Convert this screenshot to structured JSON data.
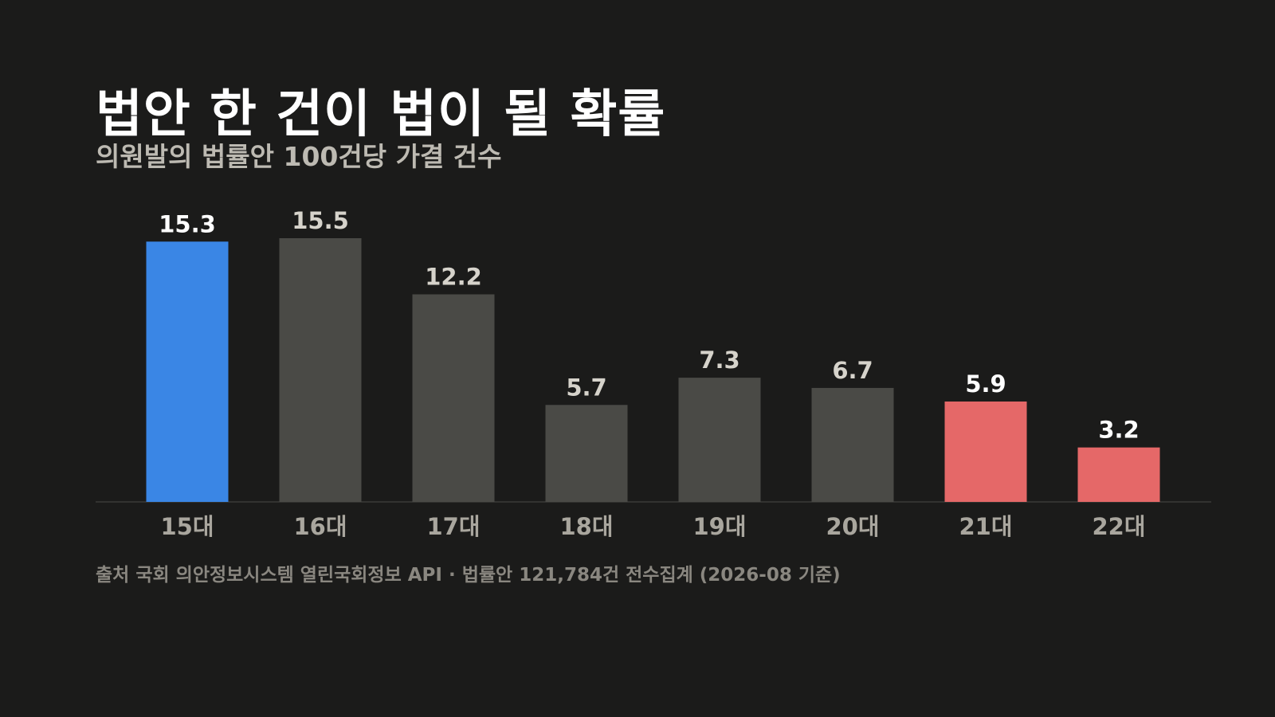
{
  "title": "법안 한 건이 법이 될 확률",
  "subtitle": "의원발의 법률안 100건당 가결 건수",
  "source": "출처 국회 의안정보시스템 열린국회정보 API · 법률안 121,784건 전수집계 (2026-08 기준)",
  "colors": {
    "background": "#1b1b1a",
    "highlight_blue": "#3a86e5",
    "neutral_gray": "#4a4a46",
    "highlight_red": "#e56868",
    "label_light": "#ffffff",
    "label_muted": "#d6d3cb",
    "axis_label": "#a9a69e",
    "baseline": "#3a3a37"
  },
  "chart_data": {
    "type": "bar",
    "title": "법안 한 건이 법이 될 확률",
    "subtitle": "의원발의 법률안 100건당 가결 건수",
    "categories": [
      "15대",
      "16대",
      "17대",
      "18대",
      "19대",
      "20대",
      "21대",
      "22대"
    ],
    "values": [
      15.3,
      15.5,
      12.2,
      5.7,
      7.3,
      6.7,
      5.9,
      3.2
    ],
    "value_labels": [
      "15.3",
      "15.5",
      "12.2",
      "5.7",
      "7.3",
      "6.7",
      "5.9",
      "3.2"
    ],
    "bar_colors": [
      "#3a86e5",
      "#4a4a46",
      "#4a4a46",
      "#4a4a46",
      "#4a4a46",
      "#4a4a46",
      "#e56868",
      "#e56868"
    ],
    "label_colors": [
      "#ffffff",
      "#d6d3cb",
      "#d6d3cb",
      "#d6d3cb",
      "#d6d3cb",
      "#d6d3cb",
      "#ffffff",
      "#ffffff"
    ],
    "xlabel": "",
    "ylabel": "",
    "ylim": [
      0,
      15.5
    ],
    "grid": false,
    "legend": "none"
  }
}
